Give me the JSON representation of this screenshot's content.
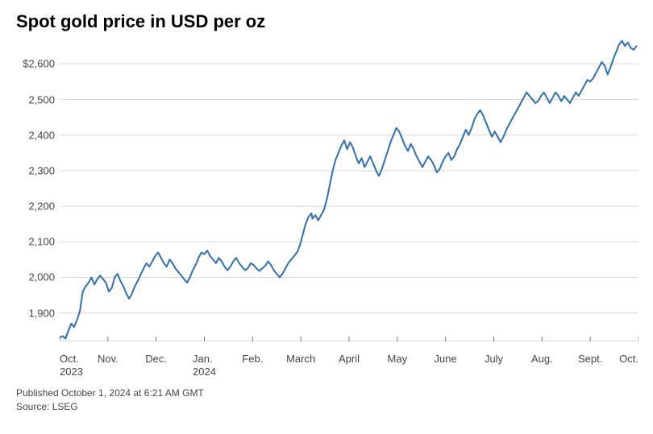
{
  "title": "Spot gold price in USD per oz",
  "footer": {
    "published": "Published October 1, 2024 at 6:21 AM GMT",
    "source": "Source: LSEG"
  },
  "chart": {
    "type": "line",
    "background_color": "#ffffff",
    "grid_color": "#d8d8d8",
    "axis_tick_color": "#777777",
    "line_color": "#2f6fb5",
    "line_width": 2,
    "title_fontsize": 22,
    "label_fontsize": 13,
    "footer_fontsize": 12,
    "ylim": [
      1820,
      2680
    ],
    "y_ticks": [
      1900,
      2000,
      2100,
      2200,
      2300,
      2400,
      2500,
      "$2,600"
    ],
    "y_tick_values": [
      1900,
      2000,
      2100,
      2200,
      2300,
      2400,
      2500,
      2600
    ],
    "x_ticks": [
      "Oct.\n2023",
      "Nov.",
      "Dec.",
      "Jan.\n2024",
      "Feb.",
      "March",
      "April",
      "May",
      "June",
      "July",
      "Aug.",
      "Sept.",
      "Oct."
    ],
    "x_tick_positions": [
      0,
      1,
      2,
      3,
      4,
      5,
      6,
      7,
      8,
      9,
      10,
      11,
      12
    ],
    "x_range": [
      0,
      12
    ],
    "series": [
      {
        "x": 0.0,
        "y": 1830
      },
      {
        "x": 0.06,
        "y": 1835
      },
      {
        "x": 0.12,
        "y": 1828
      },
      {
        "x": 0.18,
        "y": 1850
      },
      {
        "x": 0.24,
        "y": 1870
      },
      {
        "x": 0.3,
        "y": 1860
      },
      {
        "x": 0.36,
        "y": 1880
      },
      {
        "x": 0.42,
        "y": 1905
      },
      {
        "x": 0.48,
        "y": 1960
      },
      {
        "x": 0.54,
        "y": 1975
      },
      {
        "x": 0.6,
        "y": 1985
      },
      {
        "x": 0.66,
        "y": 2000
      },
      {
        "x": 0.72,
        "y": 1980
      },
      {
        "x": 0.78,
        "y": 1995
      },
      {
        "x": 0.84,
        "y": 2005
      },
      {
        "x": 0.9,
        "y": 1995
      },
      {
        "x": 0.96,
        "y": 1985
      },
      {
        "x": 1.02,
        "y": 1960
      },
      {
        "x": 1.08,
        "y": 1970
      },
      {
        "x": 1.14,
        "y": 2000
      },
      {
        "x": 1.2,
        "y": 2010
      },
      {
        "x": 1.26,
        "y": 1990
      },
      {
        "x": 1.32,
        "y": 1975
      },
      {
        "x": 1.38,
        "y": 1955
      },
      {
        "x": 1.44,
        "y": 1940
      },
      {
        "x": 1.5,
        "y": 1955
      },
      {
        "x": 1.56,
        "y": 1975
      },
      {
        "x": 1.62,
        "y": 1990
      },
      {
        "x": 1.68,
        "y": 2008
      },
      {
        "x": 1.74,
        "y": 2025
      },
      {
        "x": 1.8,
        "y": 2040
      },
      {
        "x": 1.86,
        "y": 2030
      },
      {
        "x": 1.92,
        "y": 2045
      },
      {
        "x": 1.98,
        "y": 2060
      },
      {
        "x": 2.04,
        "y": 2070
      },
      {
        "x": 2.1,
        "y": 2055
      },
      {
        "x": 2.16,
        "y": 2040
      },
      {
        "x": 2.22,
        "y": 2030
      },
      {
        "x": 2.28,
        "y": 2050
      },
      {
        "x": 2.34,
        "y": 2040
      },
      {
        "x": 2.4,
        "y": 2025
      },
      {
        "x": 2.46,
        "y": 2015
      },
      {
        "x": 2.52,
        "y": 2005
      },
      {
        "x": 2.58,
        "y": 1995
      },
      {
        "x": 2.64,
        "y": 1985
      },
      {
        "x": 2.7,
        "y": 2000
      },
      {
        "x": 2.76,
        "y": 2020
      },
      {
        "x": 2.82,
        "y": 2035
      },
      {
        "x": 2.88,
        "y": 2055
      },
      {
        "x": 2.94,
        "y": 2070
      },
      {
        "x": 3.0,
        "y": 2065
      },
      {
        "x": 3.06,
        "y": 2075
      },
      {
        "x": 3.12,
        "y": 2060
      },
      {
        "x": 3.18,
        "y": 2050
      },
      {
        "x": 3.24,
        "y": 2040
      },
      {
        "x": 3.3,
        "y": 2055
      },
      {
        "x": 3.36,
        "y": 2045
      },
      {
        "x": 3.42,
        "y": 2030
      },
      {
        "x": 3.48,
        "y": 2020
      },
      {
        "x": 3.54,
        "y": 2030
      },
      {
        "x": 3.6,
        "y": 2045
      },
      {
        "x": 3.66,
        "y": 2055
      },
      {
        "x": 3.72,
        "y": 2040
      },
      {
        "x": 3.78,
        "y": 2030
      },
      {
        "x": 3.84,
        "y": 2020
      },
      {
        "x": 3.9,
        "y": 2025
      },
      {
        "x": 3.96,
        "y": 2040
      },
      {
        "x": 4.02,
        "y": 2035
      },
      {
        "x": 4.08,
        "y": 2025
      },
      {
        "x": 4.14,
        "y": 2018
      },
      {
        "x": 4.2,
        "y": 2025
      },
      {
        "x": 4.26,
        "y": 2032
      },
      {
        "x": 4.32,
        "y": 2045
      },
      {
        "x": 4.38,
        "y": 2035
      },
      {
        "x": 4.44,
        "y": 2020
      },
      {
        "x": 4.5,
        "y": 2010
      },
      {
        "x": 4.56,
        "y": 2000
      },
      {
        "x": 4.62,
        "y": 2010
      },
      {
        "x": 4.68,
        "y": 2025
      },
      {
        "x": 4.74,
        "y": 2040
      },
      {
        "x": 4.8,
        "y": 2050
      },
      {
        "x": 4.86,
        "y": 2060
      },
      {
        "x": 4.92,
        "y": 2070
      },
      {
        "x": 4.98,
        "y": 2090
      },
      {
        "x": 5.04,
        "y": 2120
      },
      {
        "x": 5.1,
        "y": 2150
      },
      {
        "x": 5.16,
        "y": 2170
      },
      {
        "x": 5.22,
        "y": 2180
      },
      {
        "x": 5.24,
        "y": 2165
      },
      {
        "x": 5.3,
        "y": 2175
      },
      {
        "x": 5.36,
        "y": 2160
      },
      {
        "x": 5.42,
        "y": 2175
      },
      {
        "x": 5.48,
        "y": 2190
      },
      {
        "x": 5.54,
        "y": 2220
      },
      {
        "x": 5.6,
        "y": 2260
      },
      {
        "x": 5.66,
        "y": 2300
      },
      {
        "x": 5.72,
        "y": 2330
      },
      {
        "x": 5.78,
        "y": 2350
      },
      {
        "x": 5.84,
        "y": 2370
      },
      {
        "x": 5.9,
        "y": 2385
      },
      {
        "x": 5.96,
        "y": 2360
      },
      {
        "x": 6.02,
        "y": 2380
      },
      {
        "x": 6.08,
        "y": 2365
      },
      {
        "x": 6.14,
        "y": 2340
      },
      {
        "x": 6.2,
        "y": 2320
      },
      {
        "x": 6.26,
        "y": 2335
      },
      {
        "x": 6.32,
        "y": 2310
      },
      {
        "x": 6.38,
        "y": 2325
      },
      {
        "x": 6.44,
        "y": 2340
      },
      {
        "x": 6.5,
        "y": 2320
      },
      {
        "x": 6.56,
        "y": 2300
      },
      {
        "x": 6.62,
        "y": 2285
      },
      {
        "x": 6.68,
        "y": 2305
      },
      {
        "x": 6.74,
        "y": 2330
      },
      {
        "x": 6.8,
        "y": 2355
      },
      {
        "x": 6.86,
        "y": 2380
      },
      {
        "x": 6.92,
        "y": 2400
      },
      {
        "x": 6.98,
        "y": 2420
      },
      {
        "x": 7.04,
        "y": 2410
      },
      {
        "x": 7.1,
        "y": 2390
      },
      {
        "x": 7.16,
        "y": 2370
      },
      {
        "x": 7.22,
        "y": 2355
      },
      {
        "x": 7.28,
        "y": 2375
      },
      {
        "x": 7.34,
        "y": 2360
      },
      {
        "x": 7.4,
        "y": 2340
      },
      {
        "x": 7.46,
        "y": 2325
      },
      {
        "x": 7.52,
        "y": 2310
      },
      {
        "x": 7.58,
        "y": 2325
      },
      {
        "x": 7.64,
        "y": 2340
      },
      {
        "x": 7.7,
        "y": 2330
      },
      {
        "x": 7.76,
        "y": 2315
      },
      {
        "x": 7.82,
        "y": 2295
      },
      {
        "x": 7.88,
        "y": 2305
      },
      {
        "x": 7.94,
        "y": 2325
      },
      {
        "x": 8.0,
        "y": 2340
      },
      {
        "x": 8.06,
        "y": 2350
      },
      {
        "x": 8.12,
        "y": 2330
      },
      {
        "x": 8.18,
        "y": 2340
      },
      {
        "x": 8.24,
        "y": 2360
      },
      {
        "x": 8.3,
        "y": 2375
      },
      {
        "x": 8.36,
        "y": 2395
      },
      {
        "x": 8.42,
        "y": 2415
      },
      {
        "x": 8.48,
        "y": 2400
      },
      {
        "x": 8.54,
        "y": 2420
      },
      {
        "x": 8.6,
        "y": 2445
      },
      {
        "x": 8.66,
        "y": 2460
      },
      {
        "x": 8.72,
        "y": 2470
      },
      {
        "x": 8.78,
        "y": 2455
      },
      {
        "x": 8.84,
        "y": 2435
      },
      {
        "x": 8.9,
        "y": 2415
      },
      {
        "x": 8.96,
        "y": 2395
      },
      {
        "x": 9.02,
        "y": 2410
      },
      {
        "x": 9.08,
        "y": 2395
      },
      {
        "x": 9.14,
        "y": 2380
      },
      {
        "x": 9.2,
        "y": 2395
      },
      {
        "x": 9.26,
        "y": 2415
      },
      {
        "x": 9.32,
        "y": 2430
      },
      {
        "x": 9.38,
        "y": 2445
      },
      {
        "x": 9.44,
        "y": 2460
      },
      {
        "x": 9.5,
        "y": 2475
      },
      {
        "x": 9.56,
        "y": 2490
      },
      {
        "x": 9.62,
        "y": 2505
      },
      {
        "x": 9.68,
        "y": 2520
      },
      {
        "x": 9.74,
        "y": 2510
      },
      {
        "x": 9.8,
        "y": 2500
      },
      {
        "x": 9.86,
        "y": 2490
      },
      {
        "x": 9.92,
        "y": 2495
      },
      {
        "x": 9.98,
        "y": 2510
      },
      {
        "x": 10.04,
        "y": 2520
      },
      {
        "x": 10.1,
        "y": 2505
      },
      {
        "x": 10.16,
        "y": 2490
      },
      {
        "x": 10.22,
        "y": 2505
      },
      {
        "x": 10.28,
        "y": 2520
      },
      {
        "x": 10.34,
        "y": 2510
      },
      {
        "x": 10.4,
        "y": 2495
      },
      {
        "x": 10.46,
        "y": 2510
      },
      {
        "x": 10.52,
        "y": 2500
      },
      {
        "x": 10.58,
        "y": 2490
      },
      {
        "x": 10.64,
        "y": 2505
      },
      {
        "x": 10.7,
        "y": 2520
      },
      {
        "x": 10.76,
        "y": 2510
      },
      {
        "x": 10.82,
        "y": 2525
      },
      {
        "x": 10.88,
        "y": 2540
      },
      {
        "x": 10.94,
        "y": 2555
      },
      {
        "x": 11.0,
        "y": 2550
      },
      {
        "x": 11.06,
        "y": 2560
      },
      {
        "x": 11.12,
        "y": 2575
      },
      {
        "x": 11.18,
        "y": 2590
      },
      {
        "x": 11.24,
        "y": 2605
      },
      {
        "x": 11.3,
        "y": 2595
      },
      {
        "x": 11.36,
        "y": 2570
      },
      {
        "x": 11.42,
        "y": 2590
      },
      {
        "x": 11.48,
        "y": 2615
      },
      {
        "x": 11.54,
        "y": 2635
      },
      {
        "x": 11.6,
        "y": 2655
      },
      {
        "x": 11.66,
        "y": 2665
      },
      {
        "x": 11.72,
        "y": 2650
      },
      {
        "x": 11.78,
        "y": 2660
      },
      {
        "x": 11.84,
        "y": 2645
      },
      {
        "x": 11.9,
        "y": 2640
      },
      {
        "x": 11.96,
        "y": 2650
      }
    ]
  }
}
